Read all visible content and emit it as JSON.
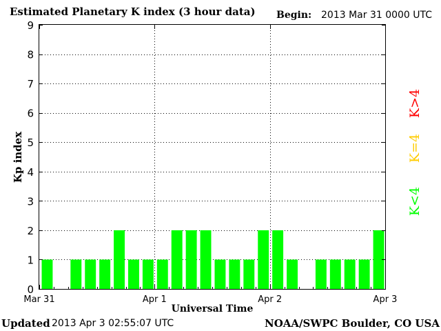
{
  "header": {
    "title": "Estimated Planetary K index (3 hour data)",
    "begin_label": "Begin:",
    "begin_value": "2013 Mar 31 0000 UTC"
  },
  "footer": {
    "updated_label": "Updated",
    "updated_value": "2013 Apr  3 02:55:07 UTC",
    "credit": "NOAA/SWPC Boulder, CO USA"
  },
  "legend": {
    "high": "K>4",
    "equal": "K=4",
    "low": "K<4",
    "colors": {
      "high": "#ff0000",
      "equal": "#ffcc00",
      "low": "#00ff00"
    }
  },
  "chart_data": {
    "type": "bar",
    "title": "Estimated Planetary K index (3 hour data)",
    "xlabel": "Universal Time",
    "ylabel": "Kp index",
    "ylim": [
      0,
      9
    ],
    "yticks": [
      0,
      1,
      2,
      3,
      4,
      5,
      6,
      7,
      8,
      9
    ],
    "xlim": [
      "2013-03-31 00:00",
      "2013-04-03 00:00"
    ],
    "xticks": [
      "Mar 31",
      "Apr 1",
      "Apr 2",
      "Apr 3"
    ],
    "grid": true,
    "bar_color": "#00ff00",
    "values": [
      1,
      0,
      1,
      1,
      1,
      2,
      1,
      1,
      1,
      2,
      2,
      2,
      1,
      1,
      1,
      2,
      2,
      1,
      0,
      1,
      1,
      1,
      1,
      2
    ]
  }
}
